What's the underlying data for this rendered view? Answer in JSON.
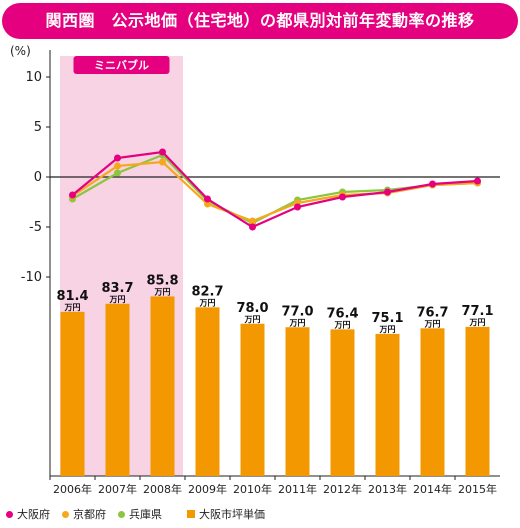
{
  "title": "関西圏　公示地価（住宅地）の都県別対前年変動率の推移",
  "chart_data": {
    "type": "line",
    "unit_label": "(%)",
    "categories": [
      "2006年",
      "2007年",
      "2008年",
      "2009年",
      "2010年",
      "2011年",
      "2012年",
      "2013年",
      "2014年",
      "2015年"
    ],
    "ylim": [
      -10,
      10
    ],
    "y_ticks": [
      10,
      5,
      0,
      -5,
      -10
    ],
    "highlight": {
      "label": "ミニバブル",
      "from_index": 0,
      "to_index": 2
    },
    "series": [
      {
        "name": "大阪府",
        "color": "#e5007f",
        "values": [
          -1.8,
          1.9,
          2.5,
          -2.2,
          -5.0,
          -3.0,
          -2.0,
          -1.5,
          -0.7,
          -0.4
        ]
      },
      {
        "name": "京都府",
        "color": "#f6a81c",
        "values": [
          -1.9,
          1.1,
          1.5,
          -2.7,
          -4.4,
          -2.6,
          -1.8,
          -1.6,
          -0.8,
          -0.6
        ]
      },
      {
        "name": "兵庫県",
        "color": "#8cc63f",
        "values": [
          -2.2,
          0.4,
          2.2,
          -2.4,
          -4.6,
          -2.3,
          -1.5,
          -1.3,
          -0.8,
          -0.6
        ]
      }
    ],
    "bars": {
      "name": "大阪市坪単価",
      "color": "#f39800",
      "unit": "万円",
      "values": [
        "81.4",
        "83.7",
        "85.8",
        "82.7",
        "78.0",
        "77.0",
        "76.4",
        "75.1",
        "76.7",
        "77.1"
      ]
    }
  }
}
